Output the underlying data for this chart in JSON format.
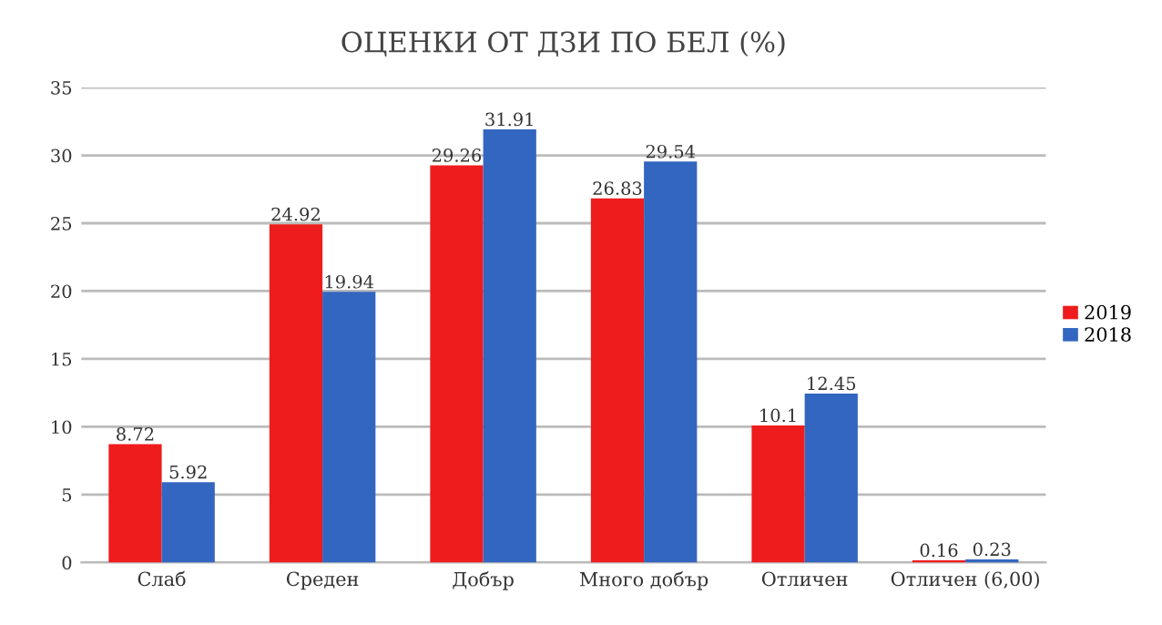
{
  "chart_data": {
    "type": "bar",
    "title": "ОЦЕНКИ ОТ ДЗИ ПО БЕЛ (%)",
    "categories": [
      "Слаб",
      "Среден",
      "Добър",
      "Много добър",
      "Отличен",
      "Отличен (6,00)"
    ],
    "series": [
      {
        "name": "2019",
        "color": "#ee1c1c",
        "values": [
          8.72,
          24.92,
          29.26,
          26.83,
          10.1,
          0.16
        ]
      },
      {
        "name": "2018",
        "color": "#3366c0",
        "values": [
          5.92,
          19.94,
          31.91,
          29.54,
          12.45,
          0.23
        ]
      }
    ],
    "ylim": [
      0,
      35
    ],
    "yticks": [
      0,
      5,
      10,
      15,
      20,
      25,
      30,
      35
    ],
    "grid": "y",
    "legend": "right",
    "data_labels": true
  }
}
